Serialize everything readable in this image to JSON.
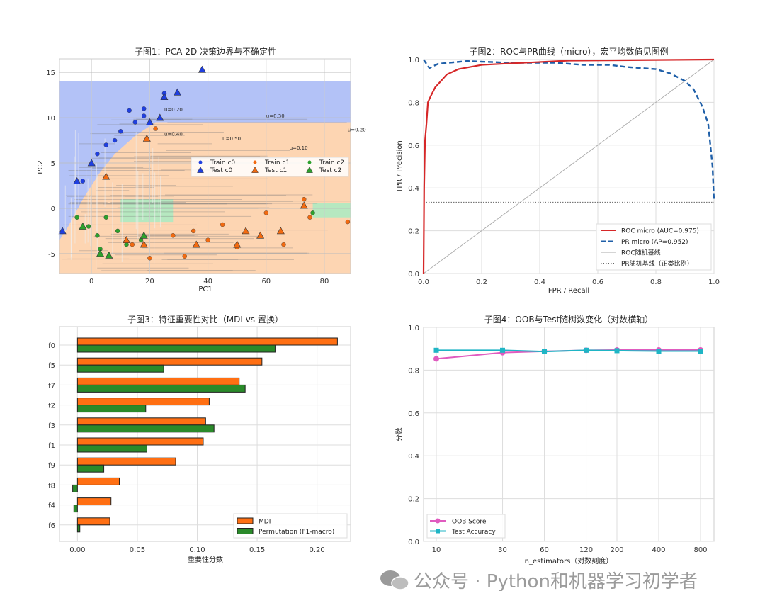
{
  "watermark": "公众号 · Python和机器学习初学者",
  "chart_data": [
    {
      "type": "scatter",
      "title": "子图1：PCA-2D 决策边界与不确定性",
      "xlabel": "PC1",
      "ylabel": "PC2",
      "xlim": [
        -11,
        89
      ],
      "ylim": [
        -7.2,
        16.5
      ],
      "xticks": [
        "0",
        "20",
        "40",
        "60",
        "80"
      ],
      "yticks": [
        "-5",
        "0",
        "5",
        "10",
        "15"
      ],
      "grid": true,
      "legend_placement": "center-right",
      "legend": [
        "Train c0",
        "Train c1",
        "Train c2",
        "Test c0",
        "Test c1",
        "Test c2"
      ],
      "colors": {
        "c0": "#1f3fe0",
        "c1": "#f26a10",
        "c2": "#2ca02c",
        "region_c0": "#b3c2f7",
        "region_c1": "#fdd5b2",
        "region_c2": "#b6e8c0"
      },
      "series": [
        {
          "name": "Train c0",
          "marker": "circle",
          "points": [
            [
              18,
              11
            ],
            [
              25,
              12.7
            ],
            [
              13,
              10.8
            ],
            [
              15,
              9.5
            ],
            [
              18,
              10.2
            ],
            [
              8,
              7.5
            ],
            [
              2,
              6
            ],
            [
              -3,
              3
            ],
            [
              10,
              8.5
            ],
            [
              5,
              7
            ]
          ]
        },
        {
          "name": "Train c1",
          "marker": "circle",
          "points": [
            [
              20,
              -5.5
            ],
            [
              32,
              -5.3
            ],
            [
              40,
              -3.5
            ],
            [
              50,
              -4.3
            ],
            [
              75,
              -1
            ],
            [
              88,
              -1.5
            ],
            [
              60,
              -0.5
            ],
            [
              22,
              8.8
            ],
            [
              14,
              -4
            ],
            [
              28,
              -3
            ],
            [
              35,
              -2.5
            ],
            [
              45,
              -1.8
            ],
            [
              66,
              -4
            ],
            [
              73,
              1
            ]
          ]
        },
        {
          "name": "Train c2",
          "marker": "circle",
          "points": [
            [
              -1,
              -2
            ],
            [
              2,
              -3
            ],
            [
              5,
              -1
            ],
            [
              12,
              -4
            ],
            [
              17,
              -3.5
            ],
            [
              76,
              -0.5
            ],
            [
              9,
              -2.5
            ],
            [
              -5,
              -1
            ],
            [
              3,
              -4.5
            ]
          ]
        },
        {
          "name": "Test c0",
          "marker": "triangle",
          "points": [
            [
              38,
              15.3
            ],
            [
              25,
              12.3
            ],
            [
              29.5,
              12.8
            ],
            [
              23.5,
              10
            ],
            [
              -5,
              3
            ],
            [
              -10,
              -2.5
            ],
            [
              0,
              5
            ],
            [
              20,
              9.5
            ]
          ]
        },
        {
          "name": "Test c1",
          "marker": "triangle",
          "points": [
            [
              19,
              7.7
            ],
            [
              73,
              0.3
            ],
            [
              36,
              -4
            ],
            [
              50,
              -4
            ],
            [
              58,
              -3
            ],
            [
              65,
              -2.5
            ],
            [
              5,
              3.5
            ],
            [
              12,
              -3.5
            ],
            [
              18,
              -4
            ],
            [
              53,
              -2.5
            ]
          ]
        },
        {
          "name": "Test c2",
          "marker": "triangle",
          "points": [
            [
              3,
              -5
            ],
            [
              6,
              -5.2
            ],
            [
              -3,
              -2
            ],
            [
              18,
              -3
            ]
          ]
        }
      ],
      "contour_labels": [
        "u=0.20",
        "u=0.30",
        "u=0.40",
        "u=0.50",
        "u=0.10"
      ]
    },
    {
      "type": "line",
      "title": "子图2：ROC与PR曲线（micro），宏平均数值见图例",
      "xlabel": "FPR / Recall",
      "ylabel": "TPR / Precision",
      "xlim": [
        0,
        1
      ],
      "ylim": [
        0,
        1
      ],
      "xticks": [
        "0.0",
        "0.2",
        "0.4",
        "0.6",
        "0.8",
        "1.0"
      ],
      "yticks": [
        "0.0",
        "0.2",
        "0.4",
        "0.6",
        "0.8",
        "1.0"
      ],
      "grid": true,
      "legend_placement": "bottom-right",
      "series": [
        {
          "name": "ROC micro (AUC=0.975)",
          "color": "#d62728",
          "style": "solid",
          "x": [
            0,
            0.002,
            0.005,
            0.01,
            0.015,
            0.025,
            0.04,
            0.06,
            0.08,
            0.12,
            0.2,
            0.3,
            0.5,
            1.0
          ],
          "y": [
            0,
            0.4,
            0.62,
            0.7,
            0.8,
            0.83,
            0.87,
            0.9,
            0.93,
            0.955,
            0.975,
            0.982,
            0.995,
            1.0
          ]
        },
        {
          "name": "PR micro (AP=0.952)",
          "color": "#1f5fa8",
          "style": "dashed",
          "x": [
            0,
            0.02,
            0.05,
            0.15,
            0.2,
            0.3,
            0.45,
            0.55,
            0.64,
            0.7,
            0.8,
            0.85,
            0.9,
            0.93,
            0.96,
            0.98,
            0.995,
            1.0
          ],
          "y": [
            1.0,
            0.96,
            0.98,
            0.993,
            0.99,
            0.985,
            0.985,
            0.975,
            0.975,
            0.965,
            0.955,
            0.935,
            0.9,
            0.86,
            0.78,
            0.7,
            0.5,
            0.34
          ]
        },
        {
          "name": "ROC随机基线",
          "color": "#aaaaaa",
          "style": "solid",
          "x": [
            0,
            1
          ],
          "y": [
            0,
            1
          ]
        },
        {
          "name": "PR随机基线（正类比例）",
          "color": "#666666",
          "style": "dotted",
          "x": [
            0,
            1
          ],
          "y": [
            0.333,
            0.333
          ]
        }
      ]
    },
    {
      "type": "bar",
      "orientation": "horizontal",
      "title": "子图3：特征重要性对比（MDI vs 置换）",
      "xlabel": "重要性分数",
      "ylabel": "",
      "xlim": [
        -0.015,
        0.228
      ],
      "xticks": [
        "0.00",
        "0.05",
        "0.10",
        "0.15",
        "0.20"
      ],
      "grid": true,
      "legend_placement": "bottom-right",
      "categories": [
        "f0",
        "f5",
        "f7",
        "f2",
        "f3",
        "f1",
        "f9",
        "f8",
        "f4",
        "f6"
      ],
      "series": [
        {
          "name": "MDI",
          "color": "#ff6f13",
          "values": [
            0.217,
            0.154,
            0.135,
            0.11,
            0.107,
            0.105,
            0.082,
            0.035,
            0.028,
            0.027
          ]
        },
        {
          "name": "Permutation (F1-macro)",
          "color": "#2a8a2a",
          "values": [
            0.165,
            0.072,
            0.14,
            0.057,
            0.114,
            0.058,
            0.022,
            -0.004,
            -0.003,
            0.002
          ]
        }
      ]
    },
    {
      "type": "line",
      "title": "子图4：OOB与Test随树数变化（对数横轴）",
      "xlabel": "n_estimators（对数刻度）",
      "ylabel": "分数",
      "xscale": "log",
      "ylim": [
        0,
        1
      ],
      "x": [
        10,
        30,
        60,
        120,
        200,
        400,
        800
      ],
      "xticks": [
        "10",
        "30",
        "60",
        "120",
        "200",
        "400",
        "800"
      ],
      "yticks": [
        "0.0",
        "0.2",
        "0.4",
        "0.6",
        "0.8",
        "1.0"
      ],
      "grid": true,
      "legend_placement": "bottom-left",
      "series": [
        {
          "name": "OOB Score",
          "color": "#e05bbf",
          "marker": "circle",
          "values": [
            0.853,
            0.882,
            0.888,
            0.893,
            0.894,
            0.894,
            0.894
          ]
        },
        {
          "name": "Test Accuracy",
          "color": "#1fb5c5",
          "marker": "square",
          "values": [
            0.893,
            0.893,
            0.887,
            0.893,
            0.891,
            0.889,
            0.889
          ]
        }
      ]
    }
  ]
}
